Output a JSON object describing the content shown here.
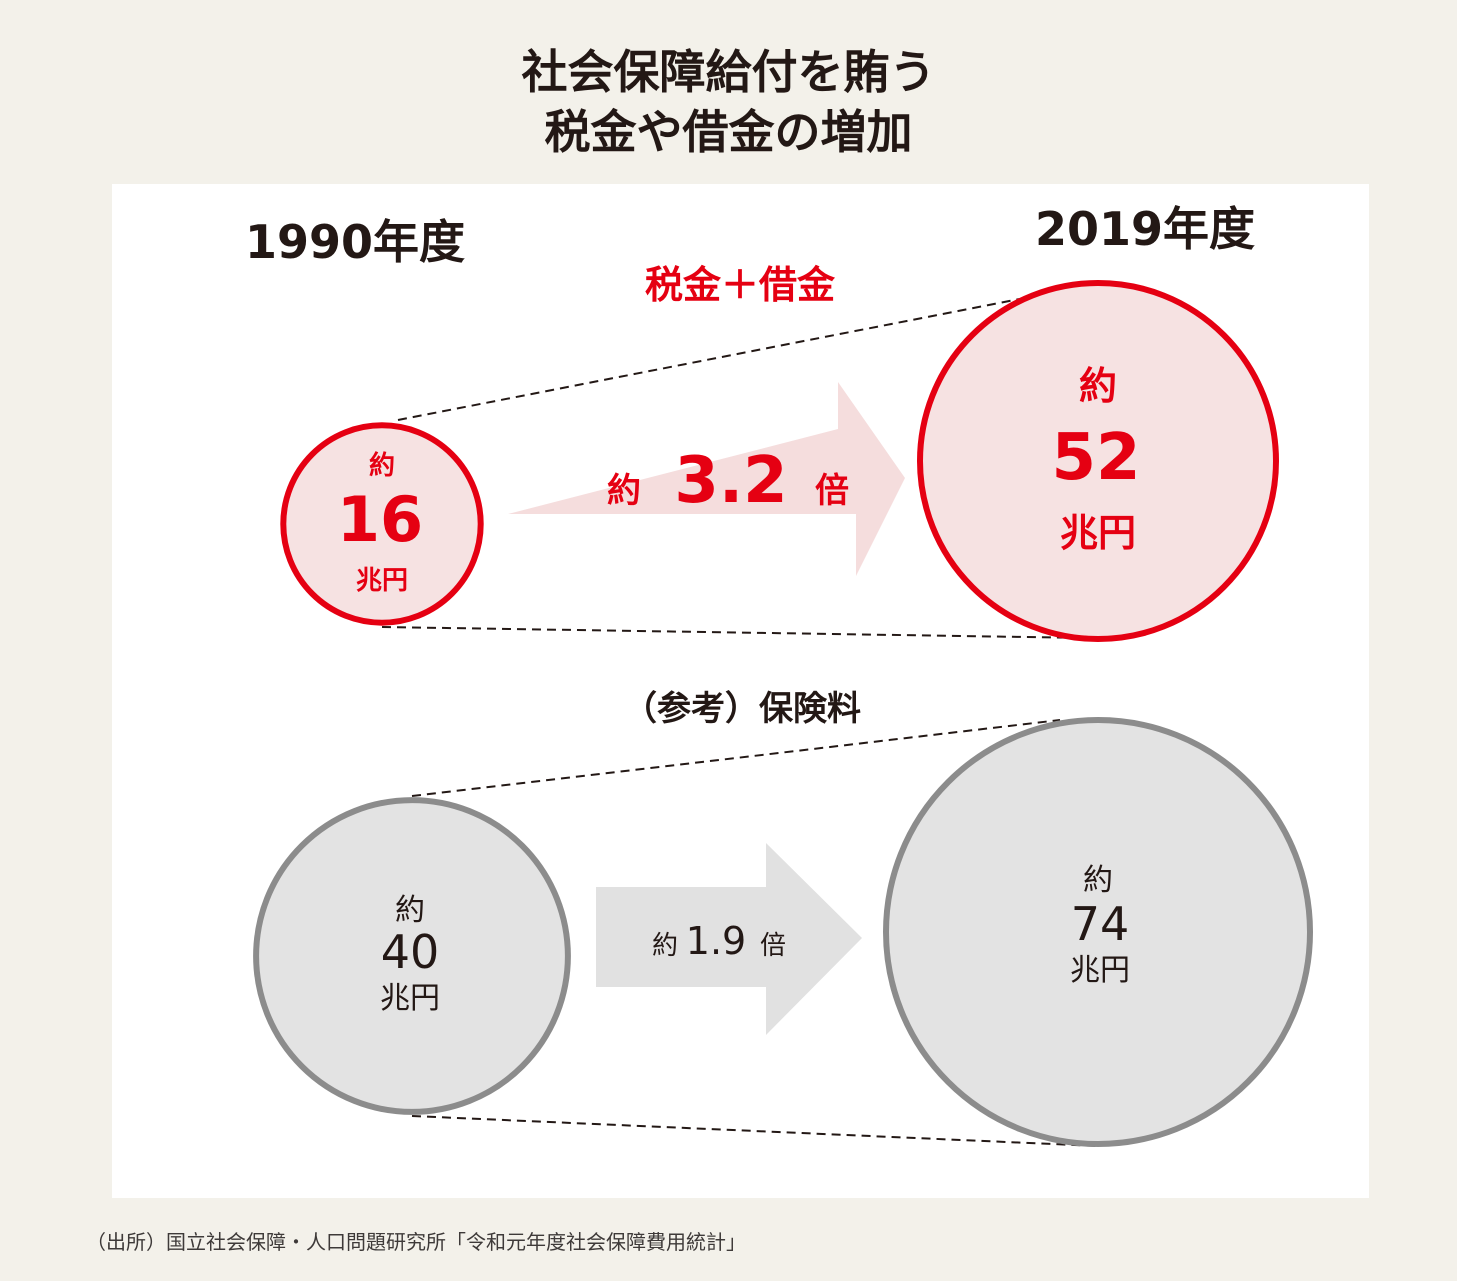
{
  "title": {
    "line1": "社会保障給付を賄う",
    "line2": "税金や借金の増加"
  },
  "years": {
    "start": "1990年度",
    "end": "2019年度"
  },
  "colors": {
    "red": "#e50012",
    "red_fill": "#f6e2e2",
    "arrow_red_fill": "#f5dddd",
    "gray": "#8c8c8c",
    "gray_fill": "#e3e3e3",
    "gray_arrow": "#e1e1e1",
    "text": "#231815"
  },
  "chart_data": {
    "type": "bubble-comparison",
    "title": "社会保障給付を賄う 税金や借金の増加",
    "years": [
      "1990年度",
      "2019年度"
    ],
    "unit": "兆円",
    "series": [
      {
        "name": "税金＋借金",
        "values": [
          16,
          52
        ],
        "ratio_prefix": "約",
        "ratio_value": "3.2",
        "ratio_suffix": "倍",
        "labels": [
          {
            "prefix": "約",
            "value": "16",
            "unit": "兆円"
          },
          {
            "prefix": "約",
            "value": "52",
            "unit": "兆円"
          }
        ]
      },
      {
        "name": "（参考）保険料",
        "values": [
          40,
          74
        ],
        "ratio_prefix": "約",
        "ratio_value": "1.9",
        "ratio_suffix": "倍",
        "labels": [
          {
            "prefix": "約",
            "value": "40",
            "unit": "兆円"
          },
          {
            "prefix": "約",
            "value": "74",
            "unit": "兆円"
          }
        ]
      }
    ]
  },
  "source": "（出所）国立社会保障・人口問題研究所「令和元年度社会保障費用統計」"
}
